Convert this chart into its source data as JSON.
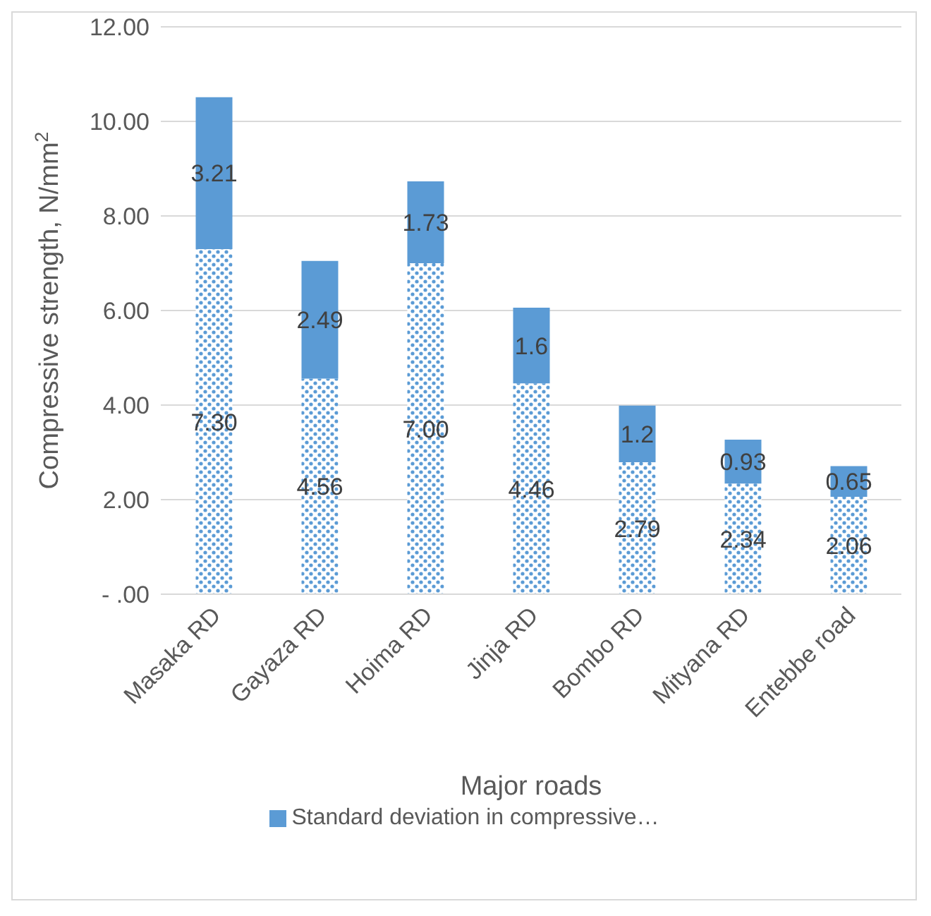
{
  "chart_data": {
    "type": "bar",
    "stacked": true,
    "xlabel": "Major roads",
    "ylabel": "Compressive strength, N/mm$^{2}$",
    "categories": [
      "Masaka RD",
      "Gayaza RD",
      "Hoima RD",
      "Jinja RD",
      "Bombo RD",
      "Mityana RD",
      "Entebbe road"
    ],
    "series": [
      {
        "color": "#5b9bd5",
        "values": [
          7.3,
          4.56,
          7.0,
          4.46,
          2.79,
          2.34,
          2.06
        ],
        "value_labels": [
          "7.30",
          "4.56",
          "7.00",
          "4.46",
          "2.79",
          "2.34",
          "2.06"
        ]
      },
      {
        "name": "Standard deviation in compressive…",
        "color": "#5b9bd5",
        "values": [
          3.21,
          2.49,
          1.73,
          1.6,
          1.2,
          0.93,
          0.65
        ],
        "value_labels": [
          "3.21",
          "2.49",
          "1.73",
          "1.6",
          "1.2",
          "0.93",
          "0.65"
        ]
      }
    ],
    "ylim": [
      0,
      12
    ],
    "yticks": [
      {
        "value": 0,
        "label": "- .00"
      },
      {
        "value": 2,
        "label": "2.00"
      },
      {
        "value": 4,
        "label": "4.00"
      },
      {
        "value": 6,
        "label": "6.00"
      },
      {
        "value": 8,
        "label": "8.00"
      },
      {
        "value": 10,
        "label": "10.00"
      },
      {
        "value": 12,
        "label": "12.00"
      }
    ],
    "grid": "y",
    "legend": "bottom"
  }
}
